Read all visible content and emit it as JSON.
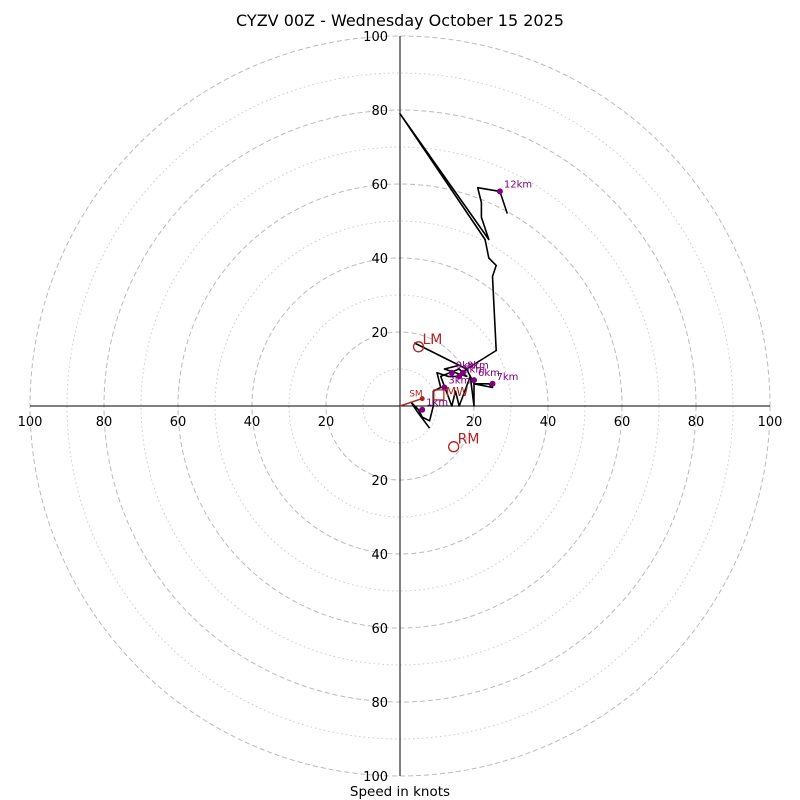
{
  "chart_data": {
    "type": "hodograph",
    "title": "CYZV 00Z - Wednesday October 15 2025",
    "xlabel": "Speed in knots",
    "max_speed": 100,
    "major_rings": [
      20,
      40,
      60,
      80,
      100
    ],
    "minor_rings": [
      10,
      30,
      50,
      70,
      90
    ],
    "tick_labels": [
      "20",
      "40",
      "60",
      "80",
      "100"
    ],
    "colors": {
      "hodo_line": "#000000",
      "height_marker": "#800080",
      "storm_marker": "#b22222",
      "grid": "#bbbbbb",
      "axis": "#000000"
    },
    "hodograph": [
      {
        "u": 8,
        "v": -6
      },
      {
        "u": 5,
        "v": -2
      },
      {
        "u": 3,
        "v": 1
      },
      {
        "u": 5,
        "v": -1
      },
      {
        "u": 6,
        "v": -3
      },
      {
        "u": 8,
        "v": -4
      },
      {
        "u": 9,
        "v": 0
      },
      {
        "u": 9,
        "v": 4
      },
      {
        "u": 11,
        "v": 5
      },
      {
        "u": 10,
        "v": 9
      },
      {
        "u": 13,
        "v": 8
      },
      {
        "u": 16,
        "v": 8
      },
      {
        "u": 18,
        "v": 10
      },
      {
        "u": 20,
        "v": 6
      },
      {
        "u": 24,
        "v": 6
      },
      {
        "u": 25,
        "v": 5
      },
      {
        "u": 20,
        "v": 6
      },
      {
        "u": 20,
        "v": 0
      },
      {
        "u": 19,
        "v": 8
      },
      {
        "u": 16,
        "v": 0
      },
      {
        "u": 15,
        "v": 4
      },
      {
        "u": 14,
        "v": 0
      },
      {
        "u": 11,
        "v": 8
      },
      {
        "u": 16,
        "v": 10
      },
      {
        "u": 18,
        "v": 8
      },
      {
        "u": 15,
        "v": 9
      },
      {
        "u": 12,
        "v": 10
      },
      {
        "u": 16,
        "v": 11
      },
      {
        "u": 4,
        "v": 17
      },
      {
        "u": 14,
        "v": 12
      },
      {
        "u": 18,
        "v": 10
      },
      {
        "u": 26,
        "v": 15
      },
      {
        "u": 25,
        "v": 35
      },
      {
        "u": 26,
        "v": 38
      },
      {
        "u": 24,
        "v": 40
      },
      {
        "u": 23,
        "v": 45
      },
      {
        "u": 0,
        "v": 79
      },
      {
        "u": 24,
        "v": 45
      },
      {
        "u": 22,
        "v": 51
      },
      {
        "u": 22,
        "v": 55
      },
      {
        "u": 21,
        "v": 59
      },
      {
        "u": 27,
        "v": 58
      },
      {
        "u": 29,
        "v": 52
      }
    ],
    "height_markers": [
      {
        "label": "1km",
        "u": 6,
        "v": -1
      },
      {
        "label": "3km",
        "u": 12,
        "v": 5
      },
      {
        "label": "5km",
        "u": 16,
        "v": 8
      },
      {
        "label": "6km",
        "u": 20,
        "v": 7
      },
      {
        "label": "7km",
        "u": 25,
        "v": 6
      },
      {
        "label": "8km",
        "u": 17,
        "v": 9
      },
      {
        "label": "9km",
        "u": 14,
        "v": 9
      },
      {
        "label": "12km",
        "u": 27,
        "v": 58
      }
    ],
    "storm_motion": {
      "right_mover": {
        "label": "RM",
        "u": 14.5,
        "v": -11
      },
      "left_mover": {
        "label": "LM",
        "u": 5,
        "v": 16
      },
      "mean_wind": {
        "label": "MW",
        "u": 10.5,
        "v": 3
      }
    },
    "shear_vector": {
      "label": "SM",
      "u_start": 0,
      "v_start": 0,
      "u_end": 6,
      "v_end": 2
    }
  }
}
